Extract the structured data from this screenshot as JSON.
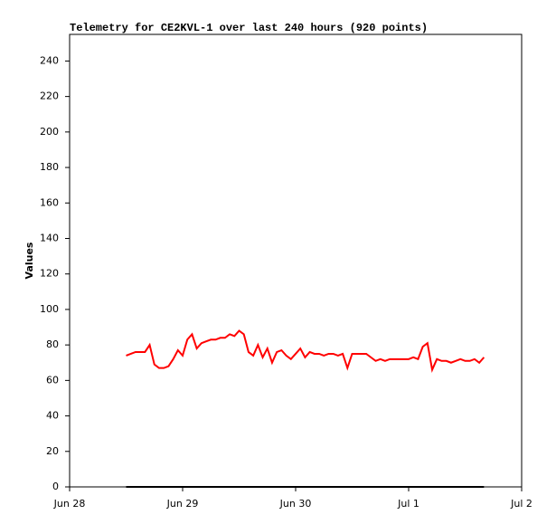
{
  "chart_data": {
    "type": "line",
    "title": "Telemetry for CE2KVL-1 over last 240 hours (920 points)",
    "y_label": "Values",
    "xlim": [
      0,
      96
    ],
    "xticks": [
      {
        "value": 0,
        "label": "Jun 28"
      },
      {
        "value": 24,
        "label": "Jun 29"
      },
      {
        "value": 48,
        "label": "Jun 30"
      },
      {
        "value": 72,
        "label": "Jul 1"
      },
      {
        "value": 96,
        "label": "Jul 2"
      }
    ],
    "ylim": [
      0,
      255
    ],
    "yticks": [
      0,
      20,
      40,
      60,
      80,
      100,
      120,
      140,
      160,
      180,
      200,
      220,
      240
    ],
    "grid": false,
    "series": [
      {
        "color": "#ff0000",
        "x": [
          12,
          13,
          14,
          15,
          16,
          17,
          18,
          19,
          20,
          21,
          22,
          23,
          24,
          25,
          26,
          27,
          28,
          29,
          30,
          31,
          32,
          33,
          34,
          35,
          36,
          37,
          38,
          39,
          40,
          41,
          42,
          43,
          44,
          45,
          46,
          47,
          48,
          49,
          50,
          51,
          52,
          53,
          54,
          55,
          56,
          57,
          58,
          59,
          60,
          61,
          62,
          63,
          64,
          65,
          66,
          67,
          68,
          69,
          70,
          71,
          72,
          73,
          74,
          75,
          76,
          77,
          78,
          79,
          80,
          81,
          82,
          83,
          84,
          85,
          86,
          87,
          88
        ],
        "values": [
          74,
          75,
          76,
          76,
          76,
          80,
          69,
          67,
          67,
          68,
          72,
          77,
          74,
          83,
          86,
          78,
          81,
          82,
          83,
          83,
          84,
          84,
          86,
          85,
          88,
          86,
          76,
          74,
          80,
          73,
          78,
          70,
          76,
          77,
          74,
          72,
          75,
          78,
          73,
          76,
          75,
          75,
          74,
          75,
          75,
          74,
          75,
          67,
          75,
          75,
          75,
          75,
          73,
          71,
          72,
          71,
          72,
          72,
          72,
          72,
          72,
          73,
          72,
          79,
          81,
          66,
          72,
          71,
          71,
          70,
          71,
          72,
          71,
          71,
          72,
          70,
          73
        ]
      },
      {
        "color": "#000000",
        "x": [
          12,
          88
        ],
        "values": [
          0,
          0
        ]
      }
    ]
  }
}
